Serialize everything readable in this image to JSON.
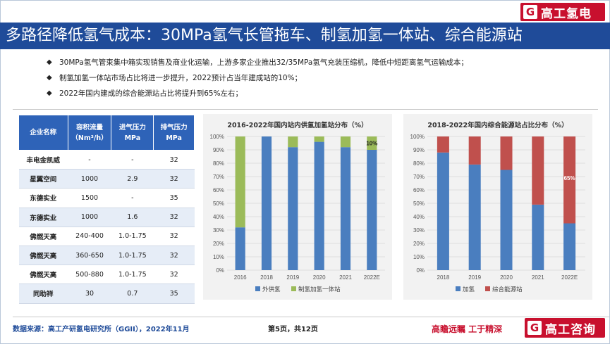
{
  "brand": {
    "top_logo": "高工氢电",
    "bottom_logo": "高工咨询",
    "logo_mark": "G",
    "color": "#c8102e"
  },
  "title": "多路径降低氢气成本：30MPa氢气长管拖车、制氢加氢一体站、综合能源站",
  "bullets": [
    "30MPa氢气管束集中箱实现销售及商业化运输，上游多家企业推出32/35MPa氢气充装压缩机，降低中短距离氢气运输成本；",
    "制氢加氢一体站市场占比将进一步提升，2022预计占当年建成站的10%；",
    "2022年国内建成的综合能源站占比将提升到65%左右；"
  ],
  "table": {
    "headers": [
      "企业名称",
      "容积流量\n（Nm³/h）",
      "进气压力\nMPa",
      "排气压力\nMPa"
    ],
    "rows": [
      [
        "丰电金凯威",
        "-",
        "-",
        "32"
      ],
      [
        "星翼空间",
        "1000",
        "2.9",
        "32"
      ],
      [
        "东德实业",
        "1500",
        "-",
        "35"
      ],
      [
        "东德实业",
        "1000",
        "1.6",
        "32"
      ],
      [
        "佛燃天高",
        "240-400",
        "1.0-1.75",
        "32"
      ],
      [
        "佛燃天高",
        "360-650",
        "1.0-1.75",
        "32"
      ],
      [
        "佛燃天高",
        "500-880",
        "1.0-1.75",
        "32"
      ],
      [
        "同助祥",
        "30",
        "0.7",
        "35"
      ]
    ]
  },
  "chart_data": [
    {
      "type": "bar",
      "stacked": true,
      "title": "2016-2022年国内站内供氢加氢站分布（%）",
      "categories": [
        "2016",
        "2018",
        "2019",
        "2020",
        "2021",
        "2022E"
      ],
      "series": [
        {
          "name": "外供氢",
          "color": "#4a7ebf",
          "values": [
            32,
            100,
            92,
            96,
            92,
            90
          ]
        },
        {
          "name": "制氢加氢一体站",
          "color": "#9bbb59",
          "values": [
            68,
            0,
            8,
            4,
            8,
            10
          ]
        }
      ],
      "ylim": [
        0,
        100
      ],
      "yticks": [
        "0%",
        "10%",
        "20%",
        "30%",
        "40%",
        "50%",
        "60%",
        "70%",
        "80%",
        "90%",
        "100%"
      ],
      "annotations": [
        {
          "category": "2022E",
          "text": "10%"
        }
      ],
      "legend": "bottom"
    },
    {
      "type": "bar",
      "stacked": true,
      "title": "2018-2022年国内综合能源站占比分布（%）",
      "categories": [
        "2018",
        "2019",
        "2020",
        "2021",
        "2022E"
      ],
      "series": [
        {
          "name": "加氢",
          "color": "#4a7ebf",
          "values": [
            88,
            79,
            75,
            49,
            35
          ]
        },
        {
          "name": "综合能源站",
          "color": "#c0504d",
          "values": [
            12,
            21,
            25,
            51,
            65
          ]
        }
      ],
      "ylim": [
        0,
        100
      ],
      "yticks": [
        "0%",
        "10%",
        "20%",
        "30%",
        "40%",
        "50%",
        "60%",
        "70%",
        "80%",
        "90%",
        "100%"
      ],
      "annotations": [
        {
          "category": "2022E",
          "text": "65%"
        }
      ],
      "legend": "bottom"
    }
  ],
  "footer": {
    "source": "数据来源：高工产研氢电研究所（GGII），2022年11月",
    "page": "第5页，共12页",
    "slogan": "高瞻远瞩 工于精深"
  }
}
